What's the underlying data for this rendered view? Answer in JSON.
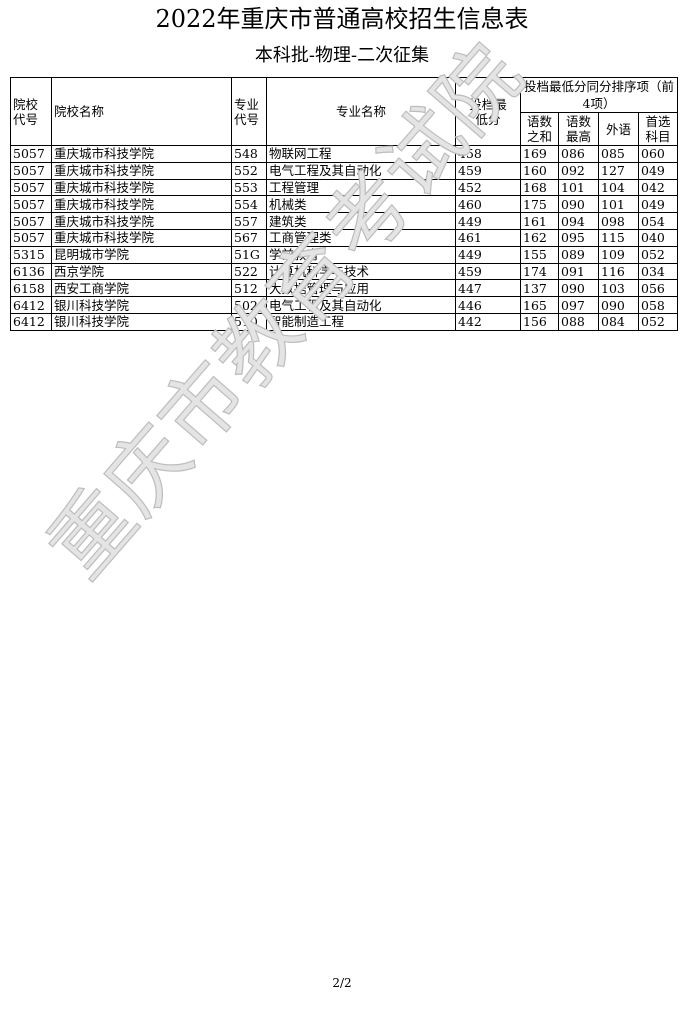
{
  "title": "2022年重庆市普通高校招生信息表",
  "subtitle": "本科批-物理-二次征集",
  "headers": {
    "school_code": "院校代号",
    "school_name": "院校名称",
    "major_code": "专业代号",
    "major_name": "专业名称",
    "min_score": "投档最低分",
    "tiebreak_group": "投档最低分同分排序项（前4项）",
    "yushu_sum": "语数之和",
    "yushu_max": "语数最高",
    "foreign": "外语",
    "first_subject": "首选科目"
  },
  "rows": [
    [
      "5057",
      "重庆城市科技学院",
      "548",
      "物联网工程",
      "458",
      "169",
      "086",
      "085",
      "060"
    ],
    [
      "5057",
      "重庆城市科技学院",
      "552",
      "电气工程及其自动化",
      "459",
      "160",
      "092",
      "127",
      "049"
    ],
    [
      "5057",
      "重庆城市科技学院",
      "553",
      "工程管理",
      "452",
      "168",
      "101",
      "104",
      "042"
    ],
    [
      "5057",
      "重庆城市科技学院",
      "554",
      "机械类",
      "460",
      "175",
      "090",
      "101",
      "049"
    ],
    [
      "5057",
      "重庆城市科技学院",
      "557",
      "建筑类",
      "449",
      "161",
      "094",
      "098",
      "054"
    ],
    [
      "5057",
      "重庆城市科技学院",
      "567",
      "工商管理类",
      "461",
      "162",
      "095",
      "115",
      "040"
    ],
    [
      "5315",
      "昆明城市学院",
      "51G",
      "学前教育",
      "449",
      "155",
      "089",
      "109",
      "052"
    ],
    [
      "6136",
      "西京学院",
      "522",
      "计算机科学与技术",
      "459",
      "174",
      "091",
      "116",
      "034"
    ],
    [
      "6158",
      "西安工商学院",
      "512",
      "大数据管理与应用",
      "447",
      "137",
      "090",
      "103",
      "056"
    ],
    [
      "6412",
      "银川科技学院",
      "502",
      "电气工程及其自动化",
      "446",
      "165",
      "097",
      "090",
      "058"
    ],
    [
      "6412",
      "银川科技学院",
      "510",
      "智能制造工程",
      "442",
      "156",
      "088",
      "084",
      "052"
    ]
  ],
  "watermark": "重庆市教育考试院",
  "page_number": "2/2"
}
